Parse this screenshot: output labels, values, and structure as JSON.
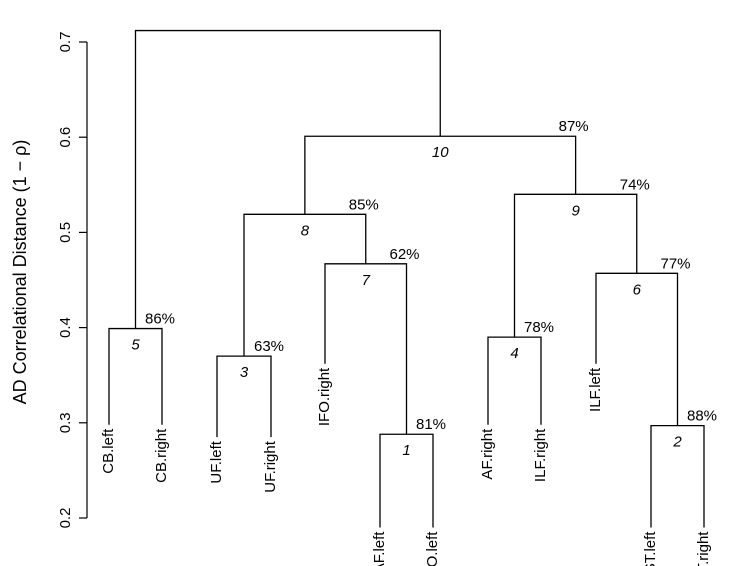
{
  "chart_data": {
    "type": "dendrogram",
    "ylabel": "AD Correlational Distance (1 − ρ)",
    "ylim": [
      0.2,
      0.72
    ],
    "yticks": [
      "0.2",
      "0.3",
      "0.4",
      "0.5",
      "0.6",
      "0.7"
    ],
    "grid": false,
    "leaves": [
      {
        "label": "CB.left",
        "height": 0.298
      },
      {
        "label": "CB.right",
        "height": 0.298
      },
      {
        "label": "UF.left",
        "height": 0.285
      },
      {
        "label": "UF.right",
        "height": 0.285
      },
      {
        "label": "IFO.right",
        "height": 0.362
      },
      {
        "label": "AF.left",
        "height": 0.19
      },
      {
        "label": "IFO.left",
        "height": 0.19
      },
      {
        "label": "AF.right",
        "height": 0.298
      },
      {
        "label": "ILF.right",
        "height": 0.298
      },
      {
        "label": "ILF.left",
        "height": 0.362
      },
      {
        "label": "CST.left",
        "height": 0.19
      },
      {
        "label": "CST.right",
        "height": 0.19
      }
    ],
    "merges": [
      {
        "id": "1",
        "left": "AF.left",
        "right": "IFO.left",
        "height": 0.288,
        "support": "81%"
      },
      {
        "id": "2",
        "left": "CST.left",
        "right": "CST.right",
        "height": 0.297,
        "support": "88%"
      },
      {
        "id": "3",
        "left": "UF.left",
        "right": "UF.right",
        "height": 0.37,
        "support": "63%"
      },
      {
        "id": "4",
        "left": "AF.right",
        "right": "ILF.right",
        "height": 0.39,
        "support": "78%"
      },
      {
        "id": "5",
        "left": "CB.left",
        "right": "CB.right",
        "height": 0.399,
        "support": "86%"
      },
      {
        "id": "6",
        "left": "ILF.left",
        "right": "2",
        "height": 0.457,
        "support": "77%"
      },
      {
        "id": "7",
        "left": "IFO.right",
        "right": "1",
        "height": 0.467,
        "support": "62%"
      },
      {
        "id": "8",
        "left": "3",
        "right": "7",
        "height": 0.519,
        "support": "85%"
      },
      {
        "id": "9",
        "left": "4",
        "right": "6",
        "height": 0.54,
        "support": "74%"
      },
      {
        "id": "10",
        "left": "8",
        "right": "9",
        "height": 0.601,
        "support": "87%"
      },
      {
        "id": "",
        "left": "5",
        "right": "10",
        "height": 0.712,
        "support": ""
      }
    ]
  }
}
